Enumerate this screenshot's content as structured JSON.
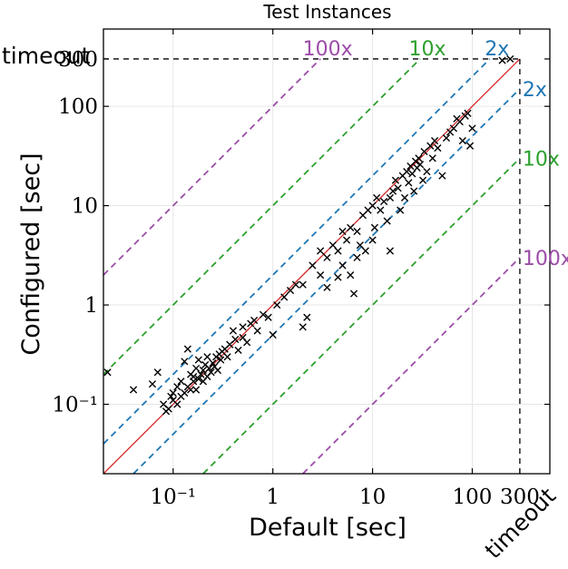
{
  "chart_data": {
    "type": "scatter",
    "title": "Test Instances",
    "xlabel": "Default [sec]",
    "ylabel": "Configured [sec]",
    "xscale": "log",
    "yscale": "log",
    "xlim": [
      0.02,
      600
    ],
    "ylim": [
      0.02,
      600
    ],
    "timeout": 300,
    "timeout_label": "timeout",
    "x_ticks": [
      {
        "value": 0.1,
        "label": "10⁻¹"
      },
      {
        "value": 1,
        "label": "1"
      },
      {
        "value": 10,
        "label": "10"
      },
      {
        "value": 100,
        "label": "100"
      },
      {
        "value": 300,
        "label": "300"
      }
    ],
    "y_ticks": [
      {
        "value": 0.1,
        "label": "10⁻¹"
      },
      {
        "value": 1,
        "label": "1"
      },
      {
        "value": 10,
        "label": "10"
      },
      {
        "value": 100,
        "label": "100"
      },
      {
        "value": 300,
        "label": "300"
      }
    ],
    "grid": true,
    "diagonal_color": "#d62728",
    "ratio_lines": [
      {
        "factor": 2,
        "label": "2x",
        "color": "#1f77b4"
      },
      {
        "factor": 10,
        "label": "10x",
        "color": "#2ca02c"
      },
      {
        "factor": 100,
        "label": "100x",
        "color": "#9c4ca8"
      }
    ],
    "marker": "x",
    "marker_color": "#000000",
    "points": [
      [
        0.022,
        0.21
      ],
      [
        0.04,
        0.14
      ],
      [
        0.062,
        0.16
      ],
      [
        0.07,
        0.21
      ],
      [
        0.08,
        0.1
      ],
      [
        0.085,
        0.085
      ],
      [
        0.09,
        0.09
      ],
      [
        0.095,
        0.12
      ],
      [
        0.1,
        0.11
      ],
      [
        0.1,
        0.13
      ],
      [
        0.11,
        0.1
      ],
      [
        0.11,
        0.15
      ],
      [
        0.12,
        0.12
      ],
      [
        0.12,
        0.17
      ],
      [
        0.13,
        0.13
      ],
      [
        0.13,
        0.27
      ],
      [
        0.14,
        0.15
      ],
      [
        0.14,
        0.36
      ],
      [
        0.15,
        0.14
      ],
      [
        0.15,
        0.2
      ],
      [
        0.16,
        0.17
      ],
      [
        0.16,
        0.19
      ],
      [
        0.17,
        0.14
      ],
      [
        0.17,
        0.23
      ],
      [
        0.18,
        0.18
      ],
      [
        0.18,
        0.28
      ],
      [
        0.19,
        0.2
      ],
      [
        0.2,
        0.17
      ],
      [
        0.2,
        0.22
      ],
      [
        0.21,
        0.25
      ],
      [
        0.22,
        0.19
      ],
      [
        0.22,
        0.3
      ],
      [
        0.23,
        0.23
      ],
      [
        0.24,
        0.21
      ],
      [
        0.25,
        0.26
      ],
      [
        0.26,
        0.24
      ],
      [
        0.27,
        0.3
      ],
      [
        0.28,
        0.22
      ],
      [
        0.29,
        0.32
      ],
      [
        0.3,
        0.28
      ],
      [
        0.31,
        0.34
      ],
      [
        0.33,
        0.36
      ],
      [
        0.35,
        0.3
      ],
      [
        0.37,
        0.4
      ],
      [
        0.4,
        0.55
      ],
      [
        0.42,
        0.45
      ],
      [
        0.45,
        0.35
      ],
      [
        0.5,
        0.6
      ],
      [
        0.5,
        0.47
      ],
      [
        0.55,
        0.42
      ],
      [
        0.6,
        0.65
      ],
      [
        0.65,
        0.7
      ],
      [
        0.7,
        0.55
      ],
      [
        0.8,
        0.8
      ],
      [
        0.9,
        0.75
      ],
      [
        1.0,
        0.5
      ],
      [
        1.1,
        1.0
      ],
      [
        1.3,
        1.2
      ],
      [
        1.5,
        1.4
      ],
      [
        1.7,
        1.6
      ],
      [
        2.0,
        0.6
      ],
      [
        2.2,
        0.75
      ],
      [
        2.0,
        1.6
      ],
      [
        2.5,
        2.5
      ],
      [
        3.0,
        2.0
      ],
      [
        3.0,
        3.5
      ],
      [
        3.5,
        1.5
      ],
      [
        3.5,
        3.0
      ],
      [
        4.0,
        4.0
      ],
      [
        4.5,
        1.9
      ],
      [
        4.5,
        3.5
      ],
      [
        5.0,
        5.5
      ],
      [
        5.0,
        2.5
      ],
      [
        5.5,
        4.5
      ],
      [
        6.0,
        2.0
      ],
      [
        6.0,
        6.0
      ],
      [
        6.5,
        1.3
      ],
      [
        7.0,
        3.0
      ],
      [
        7.0,
        5.5
      ],
      [
        7.5,
        4.0
      ],
      [
        8.0,
        8.0
      ],
      [
        8.5,
        3.5
      ],
      [
        9.0,
        9.0
      ],
      [
        10.0,
        4.5
      ],
      [
        10.0,
        10.0
      ],
      [
        10.5,
        6.0
      ],
      [
        11.0,
        12.0
      ],
      [
        12.0,
        9.0
      ],
      [
        13.0,
        11.0
      ],
      [
        14.0,
        7.0
      ],
      [
        15.0,
        12.0
      ],
      [
        15.0,
        3.5
      ],
      [
        16.0,
        14.0
      ],
      [
        17.0,
        18.0
      ],
      [
        18.0,
        15.0
      ],
      [
        19.0,
        9.0
      ],
      [
        20.0,
        20.0
      ],
      [
        21.0,
        12.0
      ],
      [
        22.0,
        22.0
      ],
      [
        23.0,
        17.0
      ],
      [
        24.0,
        25.0
      ],
      [
        25.0,
        21.0
      ],
      [
        26.0,
        14.0
      ],
      [
        27.0,
        28.0
      ],
      [
        28.0,
        24.0
      ],
      [
        29.0,
        30.0
      ],
      [
        30.0,
        26.0
      ],
      [
        32.0,
        18.0
      ],
      [
        33.0,
        35.0
      ],
      [
        35.0,
        22.0
      ],
      [
        38.0,
        40.0
      ],
      [
        40.0,
        30.0
      ],
      [
        42.0,
        45.0
      ],
      [
        45.0,
        38.0
      ],
      [
        50.0,
        20.0
      ],
      [
        55.0,
        48.0
      ],
      [
        60.0,
        55.0
      ],
      [
        65.0,
        60.0
      ],
      [
        70.0,
        75.0
      ],
      [
        75.0,
        70.0
      ],
      [
        80.0,
        45.0
      ],
      [
        85.0,
        80.0
      ],
      [
        90.0,
        85.0
      ],
      [
        95.0,
        40.0
      ],
      [
        100.0,
        60.0
      ],
      [
        200.0,
        290.0
      ],
      [
        240.0,
        300.0
      ]
    ]
  }
}
